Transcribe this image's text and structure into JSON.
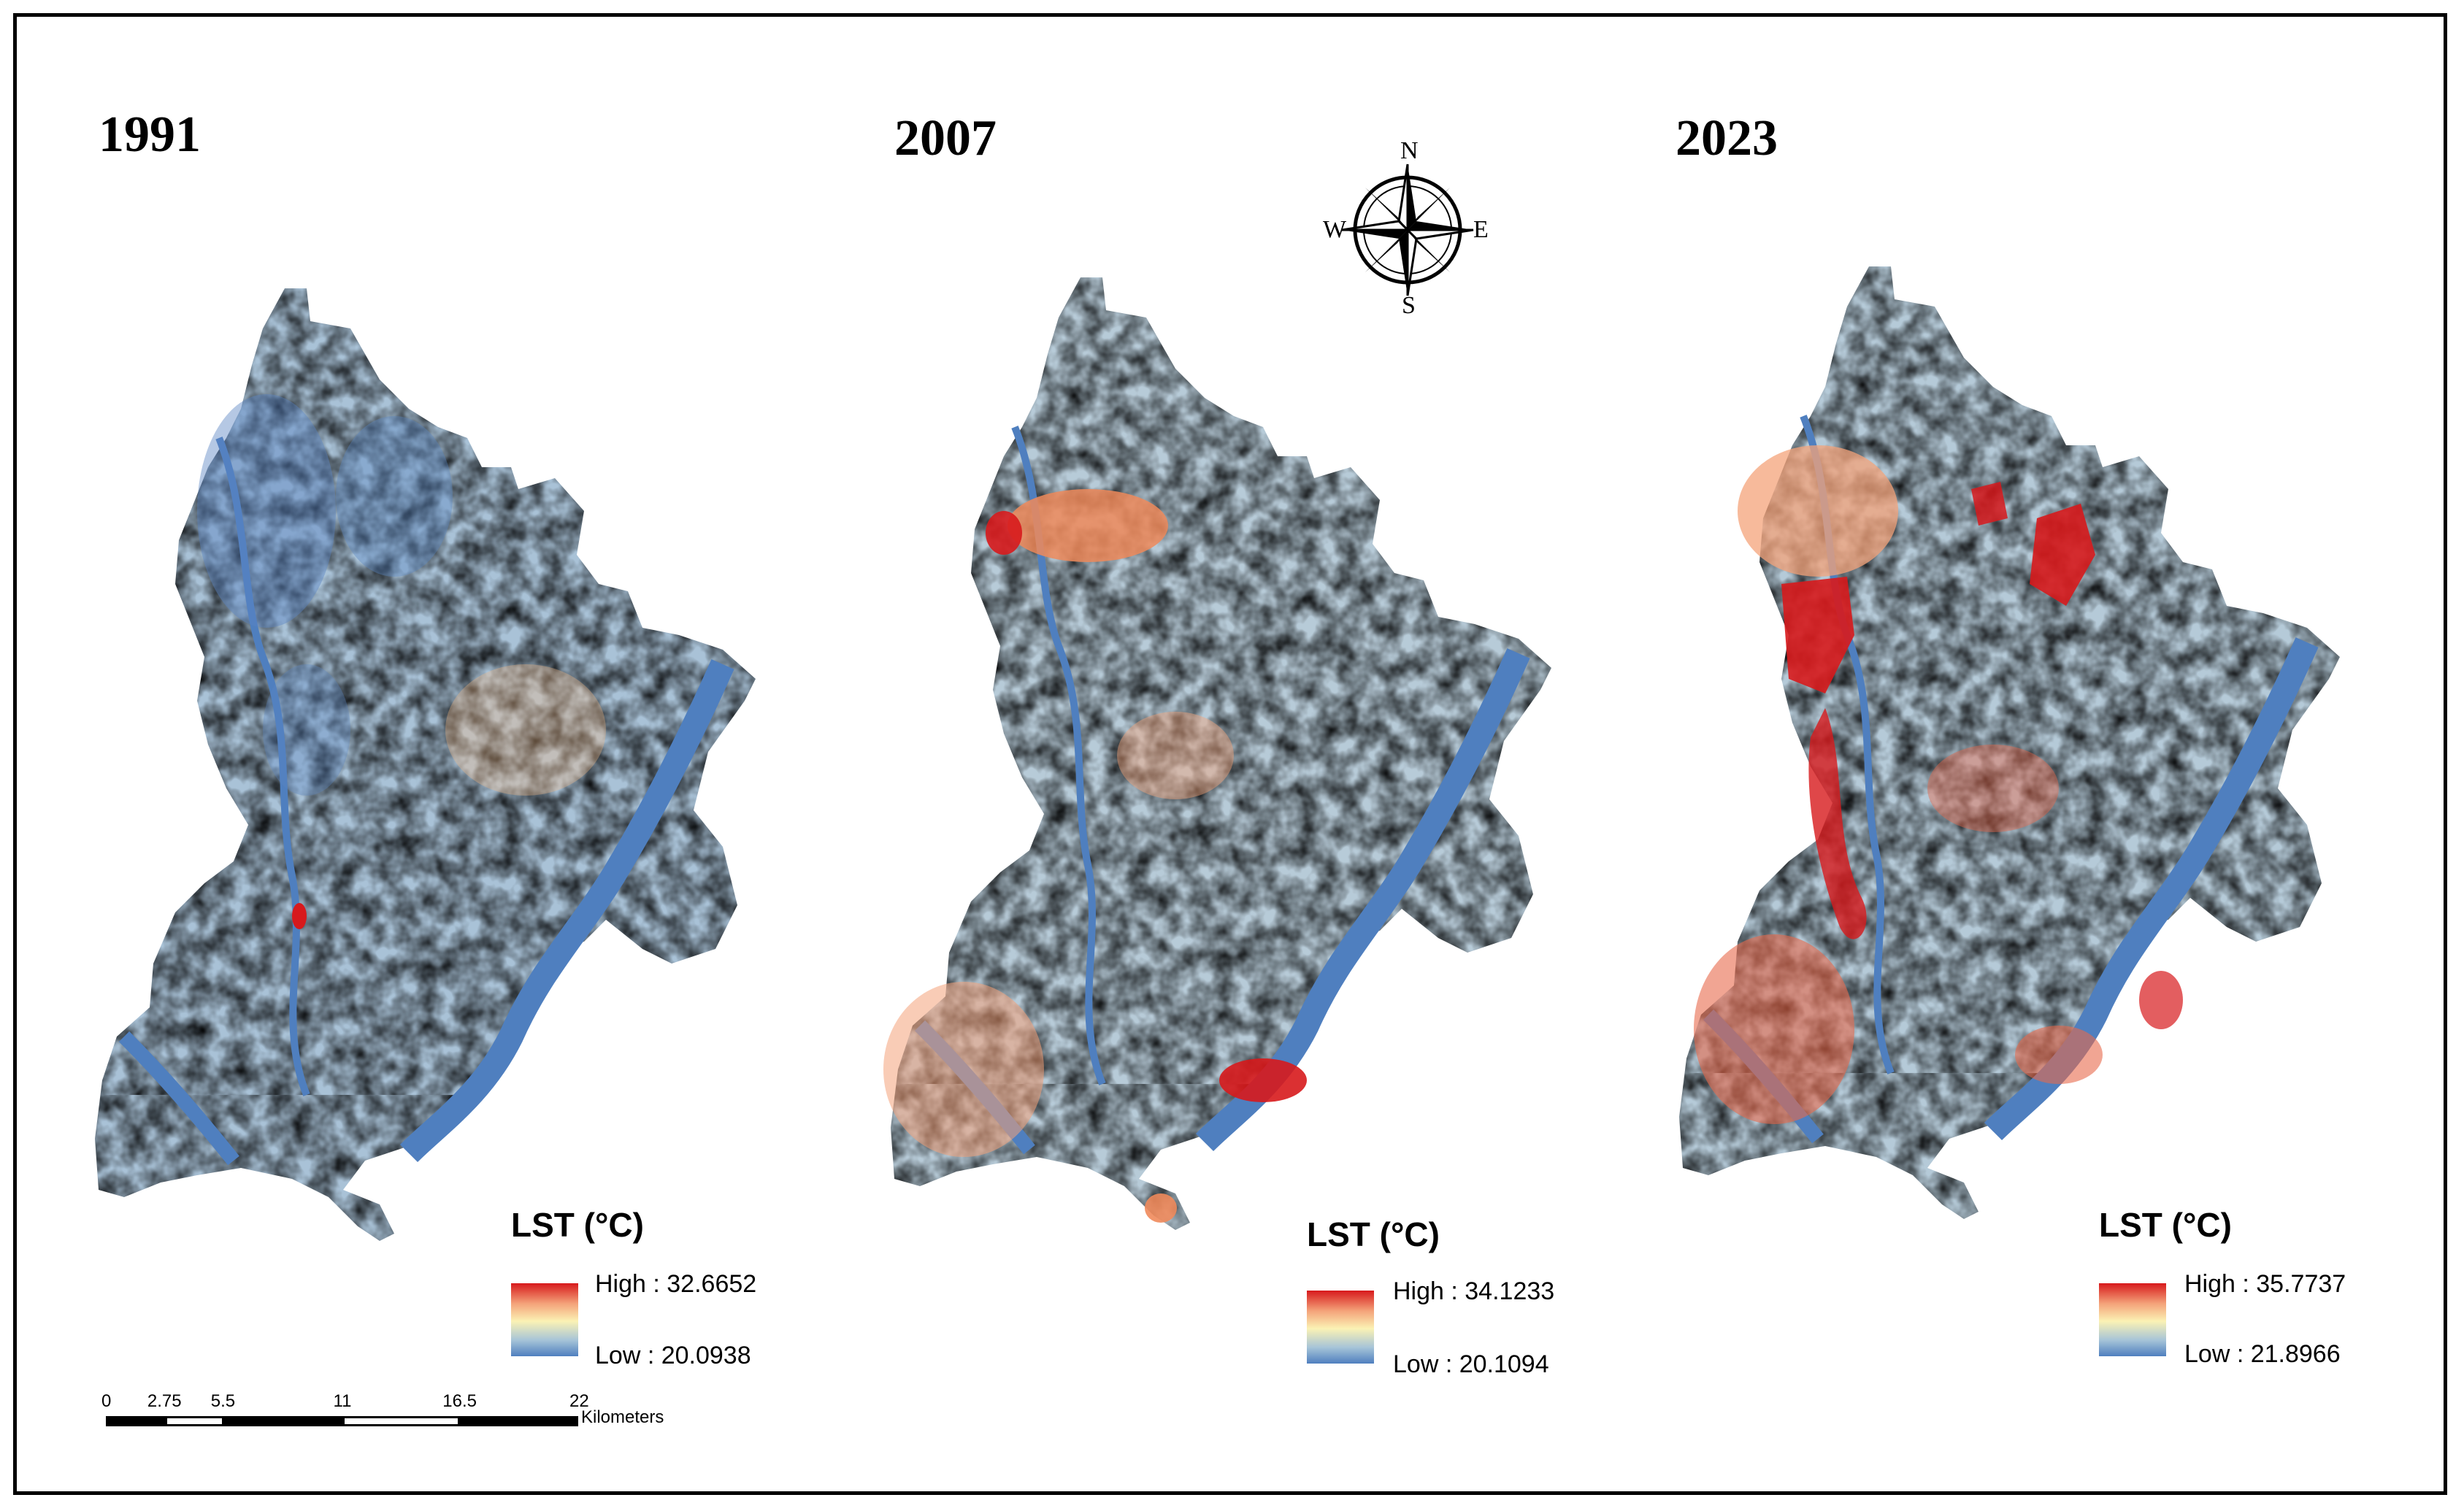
{
  "panels": [
    {
      "year": "1991",
      "legend": {
        "title": "LST (°C)",
        "high": "High : 32.6652",
        "low": "Low : 20.0938"
      }
    },
    {
      "year": "2007",
      "legend": {
        "title": "LST (°C)",
        "high": "High : 34.1233",
        "low": "Low : 20.1094"
      }
    },
    {
      "year": "2023",
      "legend": {
        "title": "LST (°C)",
        "high": "High : 35.7737",
        "low": "Low : 21.8966"
      }
    }
  ],
  "scalebar": {
    "ticks": [
      "0",
      "2.75",
      "5.5",
      "11",
      "16.5",
      "22"
    ],
    "values": [
      0,
      2.75,
      5.5,
      11,
      16.5,
      22
    ],
    "unit": "Kilometers"
  },
  "compass": {
    "north": "N",
    "south": "S",
    "east": "E",
    "west": "W"
  },
  "colors": {
    "high": "#d7191c",
    "mid": "#fbf2b4",
    "low": "#4f7fbf"
  }
}
